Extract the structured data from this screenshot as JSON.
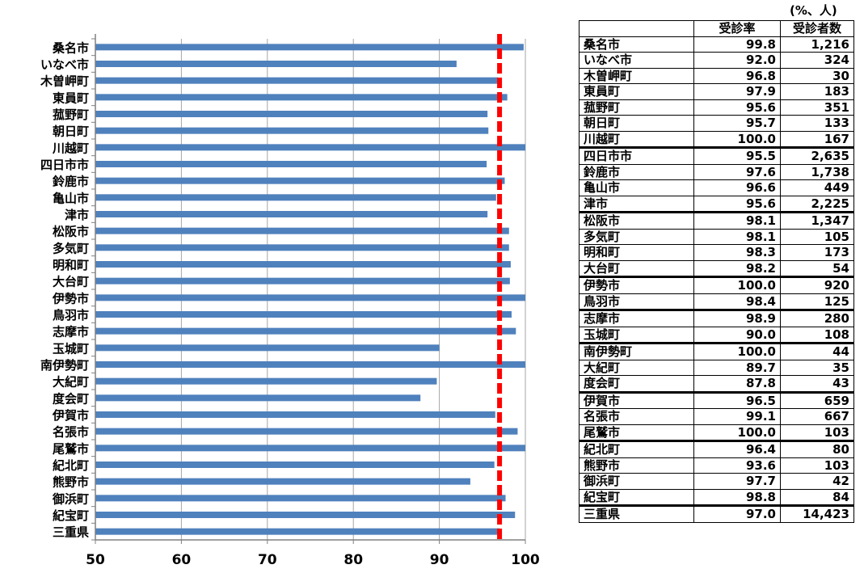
{
  "unit_note": "(%、人)",
  "table": {
    "headers": [
      "",
      "受診率",
      "受診者数"
    ],
    "rows": [
      [
        "桑名市",
        "99.8",
        "1,216"
      ],
      [
        "いなべ市",
        "92.0",
        "324"
      ],
      [
        "木曽岬町",
        "96.8",
        "30"
      ],
      [
        "東員町",
        "97.9",
        "183"
      ],
      [
        "菰野町",
        "95.6",
        "351"
      ],
      [
        "朝日町",
        "95.7",
        "133"
      ],
      [
        "川越町",
        "100.0",
        "167"
      ],
      [
        "四日市市",
        "95.5",
        "2,635"
      ],
      [
        "鈴鹿市",
        "97.6",
        "1,738"
      ],
      [
        "亀山市",
        "96.6",
        "449"
      ],
      [
        "津市",
        "95.6",
        "2,225"
      ],
      [
        "松阪市",
        "98.1",
        "1,347"
      ],
      [
        "多気町",
        "98.1",
        "105"
      ],
      [
        "明和町",
        "98.3",
        "173"
      ],
      [
        "大台町",
        "98.2",
        "54"
      ],
      [
        "伊勢市",
        "100.0",
        "920"
      ],
      [
        "鳥羽市",
        "98.4",
        "125"
      ],
      [
        "志摩市",
        "98.9",
        "280"
      ],
      [
        "玉城町",
        "90.0",
        "108"
      ],
      [
        "南伊勢町",
        "100.0",
        "44"
      ],
      [
        "大紀町",
        "89.7",
        "35"
      ],
      [
        "度会町",
        "87.8",
        "43"
      ],
      [
        "伊賀市",
        "96.5",
        "659"
      ],
      [
        "名張市",
        "99.1",
        "667"
      ],
      [
        "尾鷲市",
        "100.0",
        "103"
      ],
      [
        "紀北町",
        "96.4",
        "80"
      ],
      [
        "熊野市",
        "93.6",
        "103"
      ],
      [
        "御浜町",
        "97.7",
        "42"
      ],
      [
        "紀宝町",
        "98.8",
        "84"
      ],
      [
        "三重県",
        "97.0",
        "14,423"
      ]
    ]
  },
  "chart_data": {
    "type": "bar",
    "orientation": "horizontal",
    "categories": [
      "桑名市",
      "いなべ市",
      "木曽岬町",
      "東員町",
      "菰野町",
      "朝日町",
      "川越町",
      "四日市市",
      "鈴鹿市",
      "亀山市",
      "津市",
      "松阪市",
      "多気町",
      "明和町",
      "大台町",
      "伊勢市",
      "鳥羽市",
      "志摩市",
      "玉城町",
      "南伊勢町",
      "大紀町",
      "度会町",
      "伊賀市",
      "名張市",
      "尾鷲市",
      "紀北町",
      "熊野市",
      "御浜町",
      "紀宝町",
      "三重県"
    ],
    "values": [
      99.8,
      92.0,
      96.8,
      97.9,
      95.6,
      95.7,
      100.0,
      95.5,
      97.6,
      96.6,
      95.6,
      98.1,
      98.1,
      98.3,
      98.2,
      100.0,
      98.4,
      98.9,
      90.0,
      100.0,
      89.7,
      87.8,
      96.5,
      99.1,
      100.0,
      96.4,
      93.6,
      97.7,
      98.8,
      97.0
    ],
    "xlim": [
      50,
      100
    ],
    "xticks": [
      50,
      60,
      70,
      80,
      90,
      100
    ],
    "reference_line": 97.0,
    "grid": true,
    "colors": {
      "bar": "#4f81bd",
      "reference": "#ff0000",
      "grid": "#a6a6a6",
      "axis": "#808080"
    }
  }
}
